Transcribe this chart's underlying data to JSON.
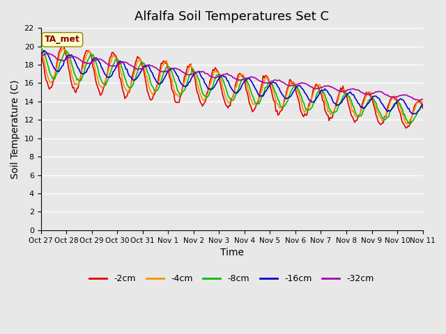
{
  "title": "Alfalfa Soil Temperatures Set C",
  "xlabel": "Time",
  "ylabel": "Soil Temperature (C)",
  "ylim": [
    0,
    22
  ],
  "yticks": [
    0,
    2,
    4,
    6,
    8,
    10,
    12,
    14,
    16,
    18,
    20,
    22
  ],
  "x_labels": [
    "Oct 27",
    "Oct 28",
    "Oct 29",
    "Oct 30",
    "Oct 31",
    "Nov 1",
    "Nov 2",
    "Nov 3",
    "Nov 4",
    "Nov 5",
    "Nov 6",
    "Nov 7",
    "Nov 8",
    "Nov 9",
    "Nov 10",
    "Nov 11"
  ],
  "annotation_text": "TA_met",
  "annotation_color": "#8B0000",
  "annotation_bg": "#FFFFCC",
  "line_colors": {
    "-2cm": "#DD0000",
    "-4cm": "#FF8C00",
    "-8cm": "#00BB00",
    "-16cm": "#0000CC",
    "-32cm": "#AA00AA"
  },
  "legend_labels": [
    "-2cm",
    "-4cm",
    "-8cm",
    "-16cm",
    "-32cm"
  ],
  "background_color": "#E8E8E8",
  "plot_bg_color": "#F0F0F0",
  "grid_color": "#FFFFFF",
  "title_fontsize": 13,
  "label_fontsize": 10
}
